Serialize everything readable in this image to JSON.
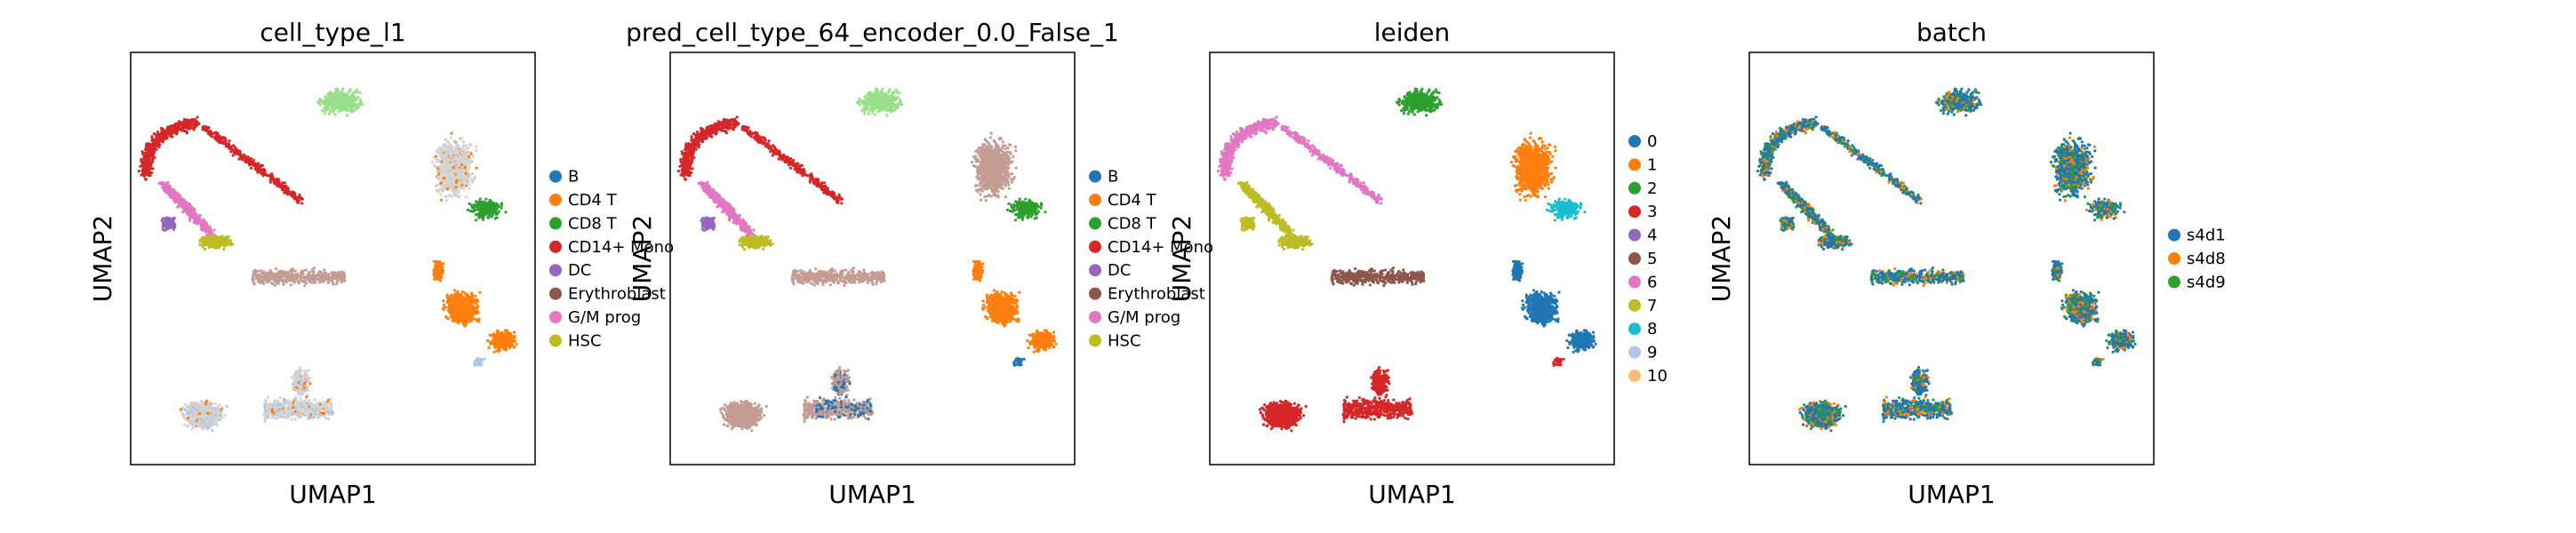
{
  "figure": {
    "palette": {
      "blue": "#1f77b4",
      "orange": "#ff7f0e",
      "green": "#2ca02c",
      "red": "#d62728",
      "purple": "#9467bd",
      "brown": "#8c564b",
      "pink": "#e377c2",
      "olive": "#bcbd22",
      "cyan": "#17becf",
      "lightblue": "#aec7e8",
      "lightorange": "#ffbb78",
      "lightgreen": "#98df8a",
      "grey": "#d3d3d3",
      "tan": "#c49c94"
    }
  },
  "chart_data": [
    {
      "type": "scatter",
      "title": "cell_type_l1",
      "xlabel": "UMAP1",
      "ylabel": "UMAP2",
      "grid": false,
      "legend_placement": "right",
      "legend": [
        {
          "label": "B",
          "color": "#1f77b4"
        },
        {
          "label": "CD4 T",
          "color": "#ff7f0e"
        },
        {
          "label": "CD8 T",
          "color": "#2ca02c"
        },
        {
          "label": "CD14+ Mono",
          "color": "#d62728"
        },
        {
          "label": "DC",
          "color": "#9467bd"
        },
        {
          "label": "Erythroblast",
          "color": "#8c564b"
        },
        {
          "label": "G/M prog",
          "color": "#e377c2"
        },
        {
          "label": "HSC",
          "color": "#bcbd22"
        }
      ],
      "clusters": [
        {
          "label": "CD14+ Mono (arc)",
          "color": "#d62728"
        },
        {
          "label": "G/M prog (arc tail)",
          "color": "#e377c2"
        },
        {
          "label": "HSC",
          "color": "#bcbd22"
        },
        {
          "label": "DC",
          "color": "#9467bd"
        },
        {
          "label": "Erythroblast",
          "color": "#8c564b"
        },
        {
          "label": "CD4 T",
          "color": "#ff7f0e"
        },
        {
          "label": "CD8 T",
          "color": "#2ca02c"
        },
        {
          "label": "B",
          "color": "#1f77b4"
        },
        {
          "label": "unlabeled",
          "color": "#d3d3d3"
        }
      ]
    },
    {
      "type": "scatter",
      "title": "pred_cell_type_64_encoder_0.0_False_1",
      "xlabel": "UMAP1",
      "ylabel": "UMAP2",
      "grid": false,
      "legend_placement": "right",
      "legend": [
        {
          "label": "B",
          "color": "#1f77b4"
        },
        {
          "label": "CD4 T",
          "color": "#ff7f0e"
        },
        {
          "label": "CD8 T",
          "color": "#2ca02c"
        },
        {
          "label": "CD14+ Mono",
          "color": "#d62728"
        },
        {
          "label": "DC",
          "color": "#9467bd"
        },
        {
          "label": "Erythroblast",
          "color": "#8c564b"
        },
        {
          "label": "G/M prog",
          "color": "#e377c2"
        },
        {
          "label": "HSC",
          "color": "#bcbd22"
        }
      ]
    },
    {
      "type": "scatter",
      "title": "leiden",
      "xlabel": "UMAP1",
      "ylabel": "UMAP2",
      "grid": false,
      "legend_placement": "right",
      "legend": [
        {
          "label": "0",
          "color": "#1f77b4"
        },
        {
          "label": "1",
          "color": "#ff7f0e"
        },
        {
          "label": "2",
          "color": "#2ca02c"
        },
        {
          "label": "3",
          "color": "#d62728"
        },
        {
          "label": "4",
          "color": "#9467bd"
        },
        {
          "label": "5",
          "color": "#8c564b"
        },
        {
          "label": "6",
          "color": "#e377c2"
        },
        {
          "label": "7",
          "color": "#bcbd22"
        },
        {
          "label": "8",
          "color": "#17becf"
        },
        {
          "label": "9",
          "color": "#aec7e8"
        },
        {
          "label": "10",
          "color": "#ffbb78"
        }
      ]
    },
    {
      "type": "scatter",
      "title": "batch",
      "xlabel": "UMAP1",
      "ylabel": "UMAP2",
      "grid": false,
      "legend_placement": "right",
      "legend": [
        {
          "label": "s4d1",
          "color": "#1f77b4"
        },
        {
          "label": "s4d8",
          "color": "#ff7f0e"
        },
        {
          "label": "s4d9",
          "color": "#2ca02c"
        }
      ]
    }
  ]
}
